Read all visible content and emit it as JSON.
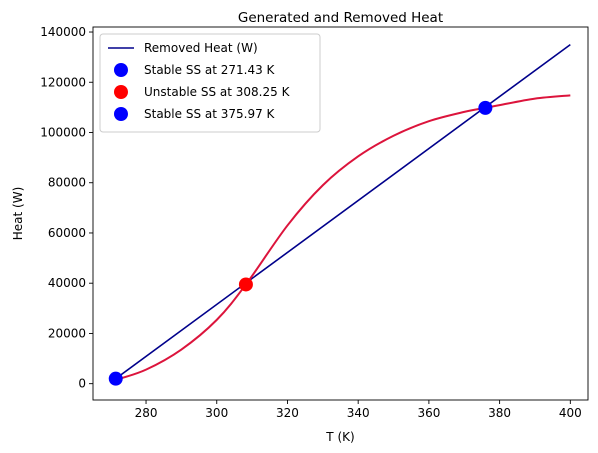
{
  "chart_data": {
    "type": "line",
    "title": "Generated and Removed Heat",
    "xlabel": "T (K)",
    "ylabel": "Heat (W)",
    "xlim": [
      265,
      405
    ],
    "ylim": [
      -6500,
      142000
    ],
    "xticks": [
      280,
      300,
      320,
      340,
      360,
      380,
      400
    ],
    "yticks": [
      0,
      20000,
      40000,
      60000,
      80000,
      100000,
      120000,
      140000
    ],
    "grid": false,
    "legend_position": "upper-left",
    "series": [
      {
        "name": "Removed Heat (W)",
        "kind": "line",
        "color": "#00008b",
        "x": [
          271.43,
          400
        ],
        "y": [
          2000,
          135000
        ]
      },
      {
        "name": "",
        "kind": "line",
        "color": "#dc143c",
        "x": [
          271.43,
          280,
          290,
          300,
          308.25,
          320,
          330,
          340,
          350,
          360,
          370,
          375.97,
          380,
          390,
          400
        ],
        "y": [
          1500,
          5600,
          13600,
          25400,
          39500,
          63000,
          79000,
          90500,
          98700,
          104500,
          108200,
          109800,
          110900,
          113500,
          114800
        ]
      },
      {
        "name": "Stable SS at 271.43 K",
        "kind": "point",
        "color": "#0000ff",
        "x": [
          271.43
        ],
        "y": [
          2000
        ]
      },
      {
        "name": "Unstable SS at 308.25 K",
        "kind": "point",
        "color": "#ff0000",
        "x": [
          308.25
        ],
        "y": [
          39500
        ]
      },
      {
        "name": "Stable SS at 375.97 K",
        "kind": "point",
        "color": "#0000ff",
        "x": [
          375.97
        ],
        "y": [
          109800
        ]
      }
    ]
  }
}
